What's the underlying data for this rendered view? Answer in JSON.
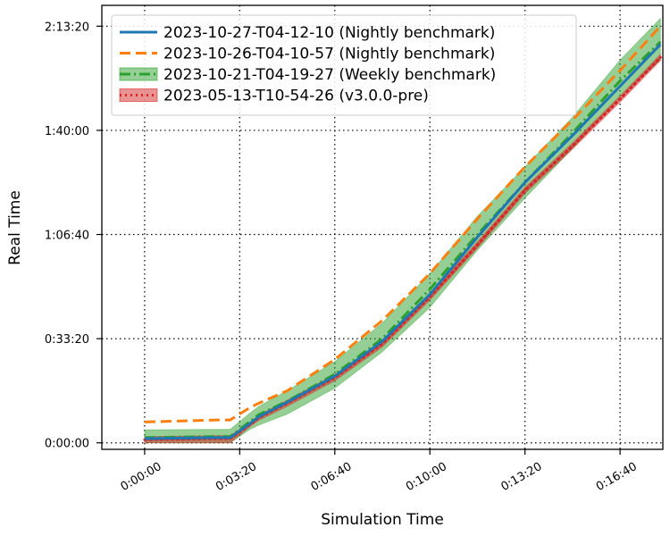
{
  "chart_data": {
    "type": "line",
    "xlabel": "Simulation Time",
    "ylabel": "Real Time",
    "x_unit": "seconds",
    "y_unit": "seconds",
    "xlim": [
      -90,
      1090
    ],
    "ylim": [
      -125,
      8400
    ],
    "x_ticks": [
      0,
      200,
      400,
      600,
      800,
      1000
    ],
    "x_tick_labels": [
      "0:00:00",
      "0:03:20",
      "0:06:40",
      "0:10:00",
      "0:13:20",
      "0:16:40"
    ],
    "y_ticks": [
      0,
      2000,
      4000,
      6000,
      8000
    ],
    "y_tick_labels": [
      "0:00:00",
      "0:33:20",
      "1:06:40",
      "1:40:00",
      "2:13:20"
    ],
    "grid": true,
    "legend_position": "top-left",
    "series": [
      {
        "name": "2023-10-27-T04-12-10 (Nightly benchmark)",
        "color": "#1f77b4",
        "style": "solid",
        "x": [
          0,
          150,
          180,
          220,
          240,
          300,
          400,
          500,
          600,
          700,
          800,
          900,
          1000,
          1085
        ],
        "y": [
          80,
          100,
          100,
          360,
          500,
          780,
          1280,
          1950,
          2850,
          3950,
          5000,
          5900,
          6850,
          7650
        ]
      },
      {
        "name": "2023-10-26-T04-10-57 (Nightly benchmark)",
        "color": "#ff7f0e",
        "style": "dashed",
        "x": [
          0,
          150,
          180,
          220,
          240,
          300,
          400,
          500,
          600,
          700,
          800,
          900,
          1000,
          1085
        ],
        "y": [
          400,
          440,
          440,
          670,
          760,
          1000,
          1600,
          2350,
          3250,
          4300,
          5300,
          6200,
          7150,
          8000
        ]
      },
      {
        "name": "2023-10-21-T04-19-27 (Weekly benchmark)",
        "color": "#2ca02c",
        "style": "dashdot",
        "band": true,
        "x": [
          0,
          150,
          180,
          220,
          240,
          300,
          400,
          500,
          600,
          700,
          800,
          900,
          1000,
          1085
        ],
        "y": [
          100,
          120,
          120,
          400,
          540,
          800,
          1320,
          2000,
          2950,
          4000,
          5000,
          5950,
          6950,
          7700
        ],
        "y_lower": [
          0,
          0,
          0,
          250,
          340,
          550,
          1050,
          1750,
          2600,
          3700,
          4700,
          5650,
          6650,
          7350
        ],
        "y_upper": [
          250,
          260,
          260,
          560,
          700,
          1000,
          1560,
          2300,
          3250,
          4350,
          5300,
          6250,
          7350,
          8150
        ]
      },
      {
        "name": "2023-05-13-T10-54-26 (v3.0.0-pre)",
        "color": "#d62728",
        "style": "dotted",
        "band": true,
        "x": [
          0,
          150,
          180,
          220,
          240,
          300,
          400,
          500,
          600,
          700,
          800,
          900,
          1000,
          1085
        ],
        "y": [
          60,
          80,
          80,
          340,
          480,
          760,
          1250,
          1900,
          2800,
          3800,
          4850,
          5700,
          6600,
          7400
        ],
        "y_lower": [
          0,
          0,
          0,
          300,
          430,
          700,
          1190,
          1840,
          2740,
          3740,
          4790,
          5640,
          6540,
          7340
        ],
        "y_upper": [
          120,
          140,
          140,
          380,
          530,
          820,
          1310,
          1960,
          2860,
          3860,
          4910,
          5760,
          6660,
          7460
        ]
      }
    ]
  }
}
